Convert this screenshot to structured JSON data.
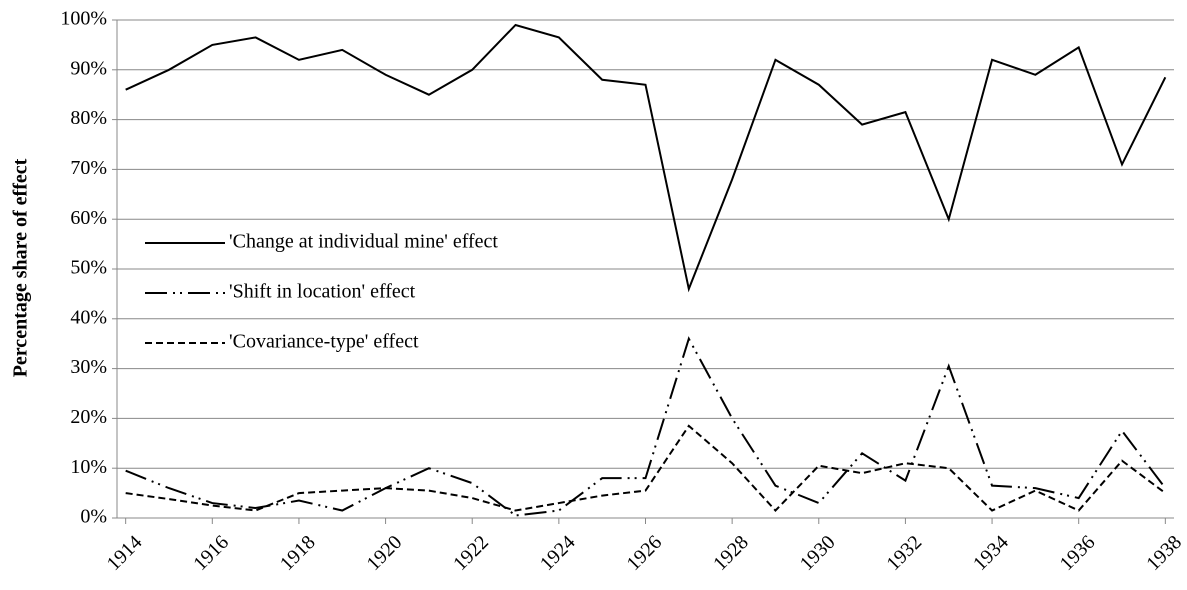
{
  "chart_data": {
    "type": "line",
    "ylabel": "Percentage share of effect",
    "x": [
      1914,
      1915,
      1916,
      1917,
      1918,
      1919,
      1920,
      1921,
      1922,
      1923,
      1924,
      1925,
      1926,
      1927,
      1928,
      1929,
      1930,
      1931,
      1932,
      1933,
      1934,
      1935,
      1936,
      1937,
      1938
    ],
    "series": [
      {
        "name": "'Change at individual mine' effect",
        "color": "#000000",
        "dash": "solid",
        "values": [
          86,
          90,
          95,
          96.5,
          92,
          94,
          89,
          85,
          90,
          99,
          96.5,
          88,
          87,
          46,
          68,
          92,
          87,
          79,
          81.5,
          60,
          92,
          89,
          94.5,
          71,
          88.5
        ]
      },
      {
        "name": "'Shift in location' effect",
        "color": "#000000",
        "dash": "dashdotdot",
        "values": [
          9.5,
          6,
          3,
          2,
          3.5,
          1.5,
          6,
          10,
          7,
          0.5,
          1.5,
          8,
          8,
          36,
          20,
          6.5,
          3,
          13,
          7.5,
          30.5,
          6.5,
          6,
          4,
          17.5,
          6
        ]
      },
      {
        "name": "'Covariance-type' effect",
        "color": "#000000",
        "dash": "dashed",
        "values": [
          5,
          3.8,
          2.5,
          1.5,
          5,
          5.5,
          6,
          5.5,
          4,
          1.5,
          3,
          4.5,
          5.5,
          18.5,
          11,
          1.5,
          10.5,
          9,
          11,
          10,
          1.5,
          5.5,
          1.5,
          11.5,
          5
        ]
      }
    ],
    "xlim": [
      1913.8,
      1938.2
    ],
    "xticks": [
      1914,
      1916,
      1918,
      1920,
      1922,
      1924,
      1926,
      1928,
      1930,
      1932,
      1934,
      1936,
      1938
    ],
    "ylim": [
      0,
      100
    ],
    "yticks": [
      {
        "value": 0,
        "label": "0%"
      },
      {
        "value": 10,
        "label": "10%"
      },
      {
        "value": 20,
        "label": "20%"
      },
      {
        "value": 30,
        "label": "30%"
      },
      {
        "value": 40,
        "label": "40%"
      },
      {
        "value": 50,
        "label": "50%"
      },
      {
        "value": 60,
        "label": "60%"
      },
      {
        "value": 70,
        "label": "70%"
      },
      {
        "value": 80,
        "label": "80%"
      },
      {
        "value": 90,
        "label": "90%"
      },
      {
        "value": 100,
        "label": "100%"
      }
    ],
    "grid": true,
    "legend": "left"
  }
}
